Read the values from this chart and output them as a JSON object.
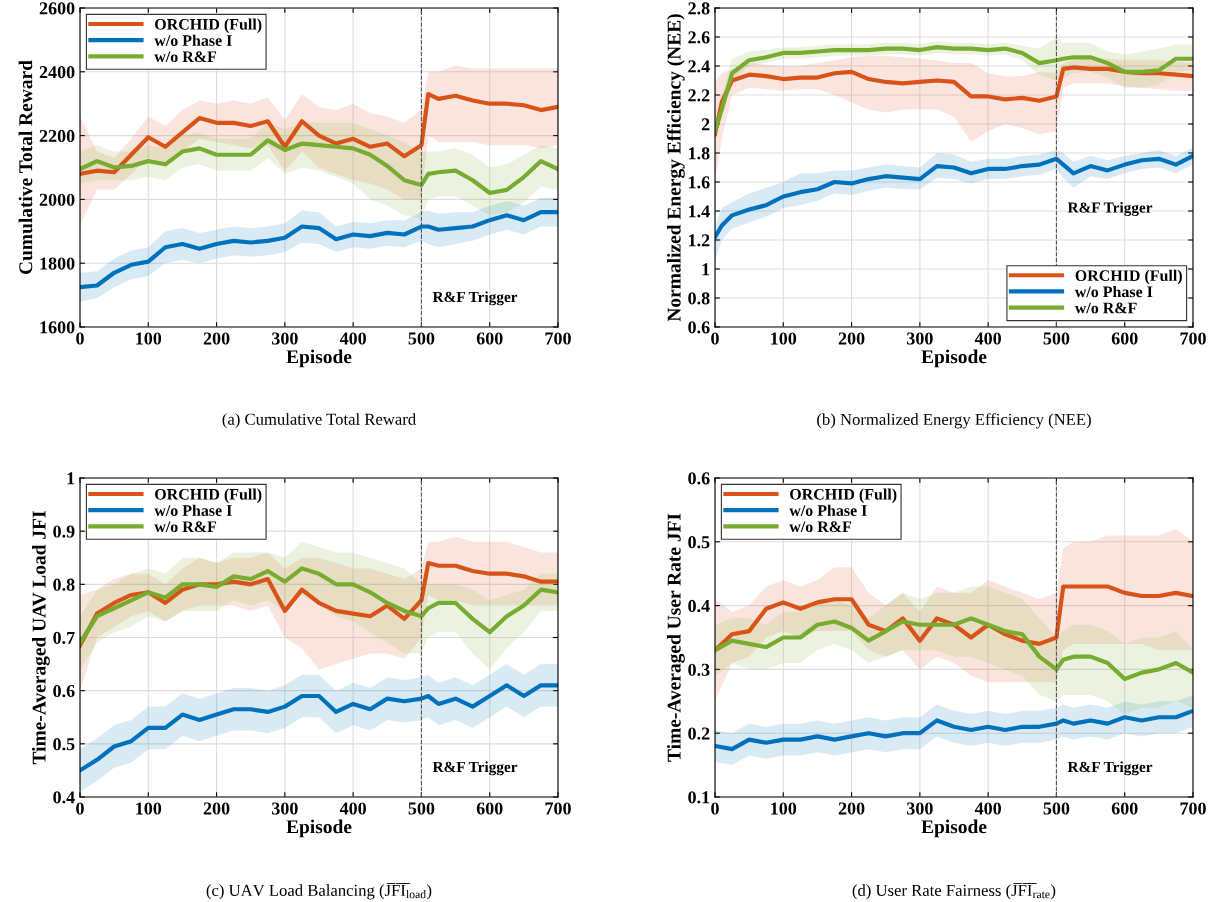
{
  "chart_data": [
    {
      "type": "line",
      "title": "(a) Cumulative Total Reward",
      "xlabel": "Episode",
      "ylabel": "Cumulative Total Reward",
      "legend": "top left",
      "grid": true,
      "line_style": "solid",
      "marker": "none",
      "x": [
        0,
        25,
        50,
        75,
        100,
        125,
        150,
        175,
        200,
        225,
        250,
        275,
        300,
        325,
        350,
        375,
        400,
        425,
        450,
        475,
        500,
        510,
        525,
        550,
        575,
        600,
        625,
        650,
        675,
        700
      ],
      "xlim": [
        0,
        700
      ],
      "xticks": [
        0,
        100,
        200,
        300,
        400,
        500,
        600,
        700
      ],
      "ylim": [
        1600,
        2600
      ],
      "yticks": [
        1600,
        1800,
        2000,
        2200,
        2400,
        2600
      ],
      "ref_lines": [
        {
          "axis": "x",
          "value": 500,
          "label": "R&F Trigger",
          "color": "#555555",
          "line_style": "dashed"
        }
      ],
      "series": [
        {
          "name": "ORCHID (Full)",
          "color": "#d95319",
          "values": [
            2080,
            2090,
            2085,
            2140,
            2195,
            2165,
            2210,
            2255,
            2240,
            2240,
            2230,
            2245,
            2165,
            2245,
            2200,
            2175,
            2190,
            2165,
            2175,
            2135,
            2170,
            2330,
            2315,
            2325,
            2310,
            2300,
            2300,
            2295,
            2280,
            2290
          ],
          "lower": [
            1920,
            2030,
            2030,
            2080,
            2130,
            2110,
            2150,
            2190,
            2180,
            2170,
            2160,
            2170,
            2090,
            2150,
            2100,
            2080,
            2060,
            2050,
            2030,
            2000,
            2000,
            2200,
            2180,
            2180,
            2180,
            2170,
            2170,
            2170,
            2160,
            2170
          ],
          "upper": [
            2260,
            2150,
            2130,
            2190,
            2260,
            2230,
            2280,
            2310,
            2300,
            2310,
            2300,
            2320,
            2250,
            2330,
            2290,
            2280,
            2300,
            2270,
            2260,
            2240,
            2280,
            2400,
            2400,
            2420,
            2410,
            2410,
            2410,
            2410,
            2410,
            2410
          ]
        },
        {
          "name": "w/o Phase I",
          "color": "#0072bd",
          "values": [
            1725,
            1730,
            1770,
            1795,
            1805,
            1850,
            1860,
            1845,
            1860,
            1870,
            1865,
            1870,
            1880,
            1915,
            1910,
            1875,
            1890,
            1885,
            1895,
            1890,
            1915,
            1915,
            1905,
            1910,
            1915,
            1935,
            1950,
            1935,
            1960,
            1960
          ],
          "lower": [
            1680,
            1690,
            1725,
            1750,
            1760,
            1800,
            1810,
            1800,
            1815,
            1825,
            1820,
            1825,
            1835,
            1865,
            1860,
            1835,
            1850,
            1845,
            1855,
            1850,
            1870,
            1860,
            1850,
            1860,
            1870,
            1890,
            1905,
            1890,
            1915,
            1915
          ],
          "upper": [
            1770,
            1775,
            1815,
            1840,
            1850,
            1900,
            1910,
            1895,
            1905,
            1915,
            1910,
            1915,
            1925,
            1965,
            1960,
            1915,
            1930,
            1925,
            1935,
            1935,
            1960,
            1965,
            1955,
            1960,
            1960,
            1980,
            1995,
            1980,
            2005,
            2005
          ]
        },
        {
          "name": "w/o R&F",
          "color": "#77ac30",
          "values": [
            2095,
            2120,
            2100,
            2105,
            2120,
            2110,
            2150,
            2160,
            2140,
            2140,
            2140,
            2185,
            2155,
            2175,
            2170,
            2165,
            2160,
            2140,
            2105,
            2060,
            2045,
            2080,
            2085,
            2090,
            2060,
            2020,
            2030,
            2070,
            2120,
            2095
          ],
          "lower": [
            2050,
            2060,
            2060,
            2060,
            2070,
            2060,
            2100,
            2110,
            2090,
            2090,
            2090,
            2130,
            2080,
            2100,
            2090,
            2070,
            2050,
            2000,
            1980,
            1950,
            1940,
            2000,
            2010,
            2010,
            1980,
            1950,
            1960,
            1990,
            2040,
            2030
          ],
          "upper": [
            2150,
            2170,
            2150,
            2150,
            2170,
            2160,
            2200,
            2210,
            2190,
            2190,
            2190,
            2240,
            2220,
            2240,
            2240,
            2240,
            2240,
            2220,
            2200,
            2180,
            2150,
            2150,
            2150,
            2160,
            2140,
            2100,
            2110,
            2140,
            2170,
            2160
          ]
        }
      ]
    },
    {
      "type": "line",
      "title": "(b) Normalized Energy Efficiency (NEE)",
      "xlabel": "Episode",
      "ylabel": "Normalized Energy Efficiency (NEE)",
      "legend": "bottom right",
      "grid": true,
      "line_style": "solid",
      "marker": "none",
      "x": [
        0,
        10,
        25,
        50,
        75,
        100,
        125,
        150,
        175,
        200,
        225,
        250,
        275,
        300,
        325,
        350,
        375,
        400,
        425,
        450,
        475,
        500,
        510,
        525,
        550,
        575,
        600,
        625,
        650,
        675,
        700
      ],
      "xlim": [
        0,
        700
      ],
      "xticks": [
        0,
        100,
        200,
        300,
        400,
        500,
        600,
        700
      ],
      "ylim": [
        0.6,
        2.8
      ],
      "yticks": [
        0.6,
        0.8,
        1,
        1.2,
        1.4,
        1.6,
        1.8,
        2,
        2.2,
        2.4,
        2.6,
        2.8
      ],
      "ref_lines": [
        {
          "axis": "x",
          "value": 500,
          "label": "R&F Trigger",
          "color": "#555555",
          "line_style": "dashed"
        }
      ],
      "series": [
        {
          "name": "ORCHID (Full)",
          "color": "#d95319",
          "values": [
            1.93,
            2.15,
            2.3,
            2.34,
            2.33,
            2.31,
            2.32,
            2.32,
            2.35,
            2.36,
            2.31,
            2.29,
            2.28,
            2.29,
            2.3,
            2.29,
            2.19,
            2.19,
            2.17,
            2.18,
            2.16,
            2.19,
            2.38,
            2.39,
            2.38,
            2.38,
            2.36,
            2.35,
            2.35,
            2.34,
            2.33
          ],
          "lower": [
            1.6,
            1.9,
            2.2,
            2.25,
            2.24,
            2.23,
            2.24,
            2.24,
            2.2,
            2.15,
            2.1,
            2.08,
            2.1,
            2.1,
            2.1,
            2.05,
            1.88,
            1.95,
            2.0,
            1.97,
            1.93,
            1.95,
            2.25,
            2.28,
            2.28,
            2.28,
            2.26,
            2.25,
            2.24,
            2.23,
            2.23
          ],
          "upper": [
            2.3,
            2.35,
            2.38,
            2.42,
            2.41,
            2.4,
            2.4,
            2.42,
            2.44,
            2.46,
            2.47,
            2.47,
            2.46,
            2.45,
            2.44,
            2.42,
            2.42,
            2.35,
            2.33,
            2.33,
            2.36,
            2.35,
            2.42,
            2.44,
            2.45,
            2.45,
            2.44,
            2.44,
            2.44,
            2.43,
            2.42
          ]
        },
        {
          "name": "w/o Phase I",
          "color": "#0072bd",
          "values": [
            1.22,
            1.3,
            1.37,
            1.41,
            1.44,
            1.5,
            1.53,
            1.55,
            1.6,
            1.59,
            1.62,
            1.64,
            1.63,
            1.62,
            1.71,
            1.7,
            1.66,
            1.69,
            1.69,
            1.71,
            1.72,
            1.76,
            1.72,
            1.66,
            1.71,
            1.68,
            1.72,
            1.75,
            1.76,
            1.72,
            1.78
          ],
          "lower": [
            1.06,
            1.2,
            1.28,
            1.32,
            1.36,
            1.42,
            1.44,
            1.47,
            1.52,
            1.51,
            1.54,
            1.56,
            1.55,
            1.55,
            1.63,
            1.62,
            1.59,
            1.62,
            1.62,
            1.64,
            1.65,
            1.69,
            1.63,
            1.56,
            1.64,
            1.62,
            1.66,
            1.69,
            1.7,
            1.66,
            1.72
          ],
          "upper": [
            1.3,
            1.42,
            1.46,
            1.52,
            1.56,
            1.6,
            1.66,
            1.66,
            1.68,
            1.68,
            1.7,
            1.72,
            1.71,
            1.7,
            1.8,
            1.79,
            1.74,
            1.76,
            1.76,
            1.78,
            1.79,
            1.82,
            1.8,
            1.74,
            1.78,
            1.75,
            1.78,
            1.8,
            1.82,
            1.78,
            1.84
          ]
        },
        {
          "name": "w/o R&F",
          "color": "#77ac30",
          "values": [
            1.95,
            2.1,
            2.35,
            2.44,
            2.46,
            2.49,
            2.49,
            2.5,
            2.51,
            2.51,
            2.51,
            2.52,
            2.52,
            2.51,
            2.53,
            2.52,
            2.52,
            2.51,
            2.52,
            2.49,
            2.42,
            2.44,
            2.45,
            2.46,
            2.46,
            2.42,
            2.36,
            2.36,
            2.37,
            2.45,
            2.45
          ],
          "lower": [
            1.9,
            2.05,
            2.3,
            2.4,
            2.42,
            2.45,
            2.45,
            2.46,
            2.47,
            2.47,
            2.47,
            2.48,
            2.48,
            2.47,
            2.49,
            2.48,
            2.48,
            2.47,
            2.48,
            2.44,
            2.34,
            2.3,
            2.32,
            2.35,
            2.36,
            2.32,
            2.25,
            2.25,
            2.27,
            2.36,
            2.37
          ],
          "upper": [
            2.0,
            2.2,
            2.45,
            2.5,
            2.51,
            2.53,
            2.53,
            2.54,
            2.55,
            2.55,
            2.55,
            2.56,
            2.56,
            2.55,
            2.57,
            2.56,
            2.56,
            2.55,
            2.56,
            2.54,
            2.52,
            2.6,
            2.56,
            2.56,
            2.56,
            2.5,
            2.48,
            2.5,
            2.52,
            2.55,
            2.55
          ]
        }
      ]
    },
    {
      "type": "line",
      "title": "(c) UAV Load Balancing (J̅F̅I̅$_{load}$)",
      "xlabel": "Episode",
      "ylabel": "Time-Averaged UAV Load JFI",
      "legend": "top left",
      "grid": true,
      "line_style": "solid",
      "marker": "none",
      "x": [
        0,
        25,
        50,
        75,
        100,
        125,
        150,
        175,
        200,
        225,
        250,
        275,
        300,
        325,
        350,
        375,
        400,
        425,
        450,
        475,
        500,
        510,
        525,
        550,
        575,
        600,
        625,
        650,
        675,
        700
      ],
      "xlim": [
        0,
        700
      ],
      "xticks": [
        0,
        100,
        200,
        300,
        400,
        500,
        600,
        700
      ],
      "ylim": [
        0.4,
        1
      ],
      "yticks": [
        0.4,
        0.5,
        0.6,
        0.7,
        0.8,
        0.9,
        1
      ],
      "ref_lines": [
        {
          "axis": "x",
          "value": 500,
          "label": "R&F Trigger",
          "color": "#555555",
          "line_style": "dashed"
        }
      ],
      "series": [
        {
          "name": "ORCHID (Full)",
          "color": "#d95319",
          "values": [
            0.685,
            0.745,
            0.765,
            0.78,
            0.785,
            0.765,
            0.79,
            0.8,
            0.8,
            0.805,
            0.8,
            0.81,
            0.75,
            0.79,
            0.765,
            0.75,
            0.745,
            0.74,
            0.76,
            0.735,
            0.77,
            0.84,
            0.835,
            0.835,
            0.825,
            0.82,
            0.82,
            0.815,
            0.805,
            0.805
          ],
          "lower": [
            0.6,
            0.7,
            0.72,
            0.74,
            0.75,
            0.73,
            0.75,
            0.76,
            0.76,
            0.76,
            0.75,
            0.76,
            0.7,
            0.68,
            0.64,
            0.65,
            0.66,
            0.67,
            0.67,
            0.66,
            0.7,
            0.78,
            0.77,
            0.77,
            0.76,
            0.76,
            0.76,
            0.76,
            0.76,
            0.76
          ],
          "upper": [
            0.78,
            0.79,
            0.81,
            0.82,
            0.82,
            0.8,
            0.83,
            0.85,
            0.84,
            0.85,
            0.85,
            0.86,
            0.83,
            0.85,
            0.85,
            0.84,
            0.83,
            0.83,
            0.82,
            0.81,
            0.83,
            0.88,
            0.88,
            0.89,
            0.88,
            0.88,
            0.88,
            0.87,
            0.86,
            0.86
          ]
        },
        {
          "name": "w/o Phase I",
          "color": "#0072bd",
          "values": [
            0.45,
            0.47,
            0.495,
            0.505,
            0.53,
            0.53,
            0.555,
            0.545,
            0.555,
            0.565,
            0.565,
            0.56,
            0.57,
            0.59,
            0.59,
            0.56,
            0.575,
            0.565,
            0.585,
            0.58,
            0.585,
            0.59,
            0.575,
            0.585,
            0.57,
            0.59,
            0.61,
            0.59,
            0.61,
            0.61
          ],
          "lower": [
            0.41,
            0.43,
            0.455,
            0.465,
            0.49,
            0.49,
            0.515,
            0.505,
            0.515,
            0.525,
            0.525,
            0.52,
            0.53,
            0.55,
            0.55,
            0.52,
            0.535,
            0.525,
            0.545,
            0.54,
            0.545,
            0.55,
            0.535,
            0.545,
            0.53,
            0.55,
            0.57,
            0.55,
            0.57,
            0.57
          ],
          "upper": [
            0.49,
            0.51,
            0.535,
            0.545,
            0.57,
            0.57,
            0.595,
            0.585,
            0.595,
            0.605,
            0.605,
            0.6,
            0.61,
            0.63,
            0.63,
            0.6,
            0.615,
            0.605,
            0.625,
            0.62,
            0.625,
            0.63,
            0.615,
            0.625,
            0.61,
            0.63,
            0.65,
            0.63,
            0.65,
            0.65
          ]
        },
        {
          "name": "w/o R&F",
          "color": "#77ac30",
          "values": [
            0.69,
            0.74,
            0.755,
            0.77,
            0.785,
            0.775,
            0.8,
            0.8,
            0.795,
            0.815,
            0.81,
            0.825,
            0.805,
            0.83,
            0.82,
            0.8,
            0.8,
            0.785,
            0.765,
            0.75,
            0.74,
            0.755,
            0.765,
            0.765,
            0.735,
            0.71,
            0.74,
            0.76,
            0.79,
            0.785
          ],
          "lower": [
            0.64,
            0.69,
            0.71,
            0.72,
            0.74,
            0.73,
            0.75,
            0.75,
            0.75,
            0.77,
            0.76,
            0.77,
            0.75,
            0.78,
            0.76,
            0.74,
            0.73,
            0.71,
            0.69,
            0.67,
            0.67,
            0.7,
            0.71,
            0.71,
            0.67,
            0.64,
            0.68,
            0.71,
            0.75,
            0.75
          ],
          "upper": [
            0.74,
            0.79,
            0.8,
            0.82,
            0.83,
            0.82,
            0.85,
            0.85,
            0.84,
            0.86,
            0.86,
            0.86,
            0.85,
            0.88,
            0.87,
            0.86,
            0.86,
            0.85,
            0.84,
            0.83,
            0.8,
            0.8,
            0.8,
            0.8,
            0.79,
            0.77,
            0.78,
            0.79,
            0.82,
            0.82
          ]
        }
      ]
    },
    {
      "type": "line",
      "title": "(d) User Rate Fairness (J̅F̅I̅$_{rate}$)",
      "xlabel": "Episode",
      "ylabel": "Time-Averaged User Rate JFI",
      "legend": "top left",
      "grid": true,
      "line_style": "solid",
      "marker": "none",
      "x": [
        0,
        25,
        50,
        75,
        100,
        125,
        150,
        175,
        200,
        225,
        250,
        275,
        300,
        325,
        350,
        375,
        400,
        425,
        450,
        475,
        500,
        510,
        525,
        550,
        575,
        600,
        625,
        650,
        675,
        700
      ],
      "xlim": [
        0,
        700
      ],
      "xticks": [
        0,
        100,
        200,
        300,
        400,
        500,
        600,
        700
      ],
      "ylim": [
        0.1,
        0.6
      ],
      "yticks": [
        0.1,
        0.2,
        0.3,
        0.4,
        0.5,
        0.6
      ],
      "ref_lines": [
        {
          "axis": "x",
          "value": 500,
          "label": "R&F Trigger",
          "color": "#555555",
          "line_style": "dashed"
        }
      ],
      "series": [
        {
          "name": "ORCHID (Full)",
          "color": "#d95319",
          "values": [
            0.33,
            0.355,
            0.36,
            0.395,
            0.405,
            0.395,
            0.405,
            0.41,
            0.41,
            0.37,
            0.36,
            0.38,
            0.345,
            0.38,
            0.37,
            0.35,
            0.37,
            0.355,
            0.345,
            0.34,
            0.35,
            0.43,
            0.43,
            0.43,
            0.43,
            0.42,
            0.415,
            0.415,
            0.42,
            0.415
          ],
          "lower": [
            0.25,
            0.31,
            0.32,
            0.35,
            0.36,
            0.35,
            0.36,
            0.36,
            0.36,
            0.33,
            0.32,
            0.33,
            0.3,
            0.32,
            0.31,
            0.29,
            0.28,
            0.28,
            0.28,
            0.28,
            0.28,
            0.33,
            0.34,
            0.34,
            0.34,
            0.34,
            0.34,
            0.33,
            0.33,
            0.33
          ],
          "upper": [
            0.41,
            0.39,
            0.4,
            0.43,
            0.44,
            0.43,
            0.44,
            0.46,
            0.46,
            0.42,
            0.4,
            0.42,
            0.39,
            0.43,
            0.42,
            0.42,
            0.44,
            0.43,
            0.42,
            0.41,
            0.42,
            0.49,
            0.5,
            0.5,
            0.51,
            0.51,
            0.51,
            0.51,
            0.52,
            0.5
          ]
        },
        {
          "name": "w/o Phase I",
          "color": "#0072bd",
          "values": [
            0.18,
            0.175,
            0.19,
            0.185,
            0.19,
            0.19,
            0.195,
            0.19,
            0.195,
            0.2,
            0.195,
            0.2,
            0.2,
            0.22,
            0.21,
            0.205,
            0.21,
            0.205,
            0.21,
            0.21,
            0.215,
            0.22,
            0.215,
            0.22,
            0.215,
            0.225,
            0.22,
            0.225,
            0.225,
            0.235
          ],
          "lower": [
            0.155,
            0.15,
            0.165,
            0.16,
            0.165,
            0.165,
            0.17,
            0.165,
            0.17,
            0.175,
            0.17,
            0.175,
            0.175,
            0.195,
            0.185,
            0.18,
            0.185,
            0.18,
            0.185,
            0.185,
            0.19,
            0.195,
            0.19,
            0.195,
            0.19,
            0.2,
            0.195,
            0.2,
            0.2,
            0.21
          ],
          "upper": [
            0.205,
            0.2,
            0.215,
            0.21,
            0.215,
            0.215,
            0.22,
            0.215,
            0.22,
            0.225,
            0.22,
            0.225,
            0.225,
            0.245,
            0.235,
            0.23,
            0.235,
            0.23,
            0.235,
            0.235,
            0.24,
            0.245,
            0.24,
            0.245,
            0.24,
            0.25,
            0.245,
            0.25,
            0.25,
            0.26
          ]
        },
        {
          "name": "w/o R&F",
          "color": "#77ac30",
          "values": [
            0.33,
            0.345,
            0.34,
            0.335,
            0.35,
            0.35,
            0.37,
            0.375,
            0.365,
            0.345,
            0.36,
            0.375,
            0.37,
            0.37,
            0.37,
            0.38,
            0.37,
            0.36,
            0.355,
            0.32,
            0.3,
            0.315,
            0.32,
            0.32,
            0.31,
            0.285,
            0.295,
            0.3,
            0.31,
            0.295
          ],
          "lower": [
            0.29,
            0.31,
            0.3,
            0.3,
            0.31,
            0.31,
            0.33,
            0.34,
            0.33,
            0.31,
            0.32,
            0.33,
            0.33,
            0.33,
            0.32,
            0.32,
            0.31,
            0.3,
            0.29,
            0.26,
            0.25,
            0.26,
            0.26,
            0.26,
            0.25,
            0.23,
            0.24,
            0.24,
            0.25,
            0.24
          ],
          "upper": [
            0.37,
            0.38,
            0.38,
            0.37,
            0.39,
            0.39,
            0.41,
            0.41,
            0.4,
            0.38,
            0.4,
            0.42,
            0.41,
            0.42,
            0.42,
            0.43,
            0.43,
            0.42,
            0.41,
            0.38,
            0.35,
            0.36,
            0.37,
            0.37,
            0.36,
            0.34,
            0.35,
            0.35,
            0.36,
            0.33
          ]
        }
      ]
    }
  ]
}
